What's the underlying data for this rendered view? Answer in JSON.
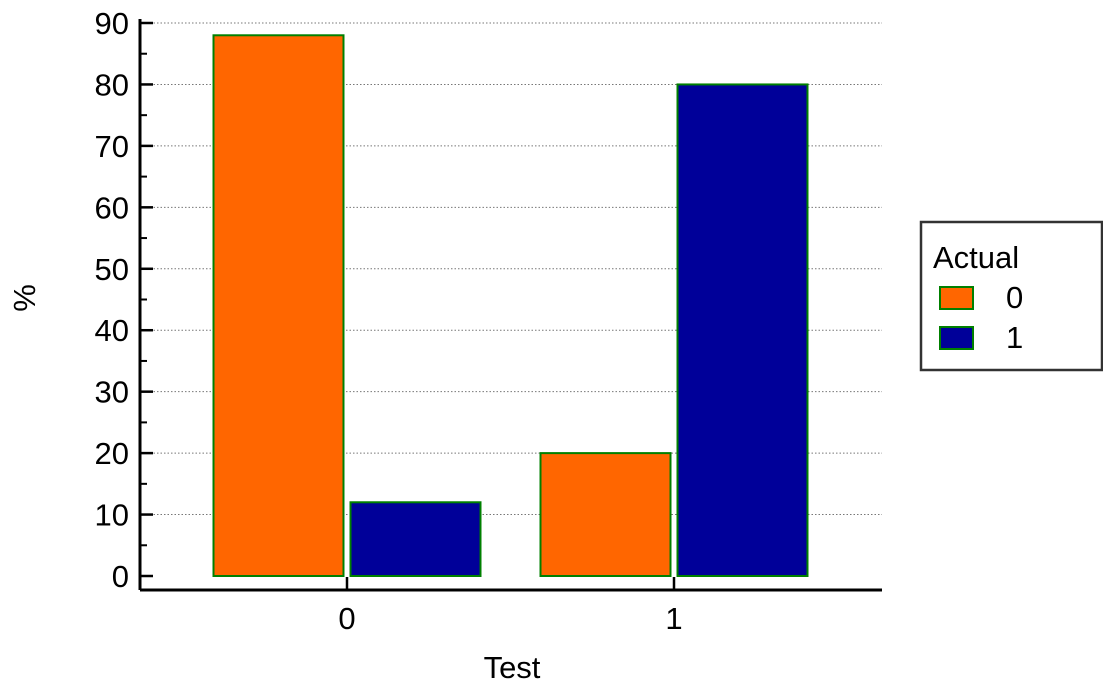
{
  "chart_data": {
    "type": "bar",
    "categories": [
      "0",
      "1"
    ],
    "series": [
      {
        "name": "0",
        "values": [
          88,
          20
        ],
        "color": "#FF6600"
      },
      {
        "name": "1",
        "values": [
          12,
          80
        ],
        "color": "#000099"
      }
    ],
    "title": "",
    "xlabel": "Test",
    "ylabel": "%",
    "ylim": [
      0,
      90
    ],
    "yticks": [
      0,
      10,
      20,
      30,
      40,
      50,
      60,
      70,
      80,
      90
    ],
    "grid": "horizontal dotted",
    "legend": {
      "title": "Actual",
      "placement": "right",
      "entries": [
        "0",
        "1"
      ]
    },
    "bar_edge_color": "#008000"
  }
}
